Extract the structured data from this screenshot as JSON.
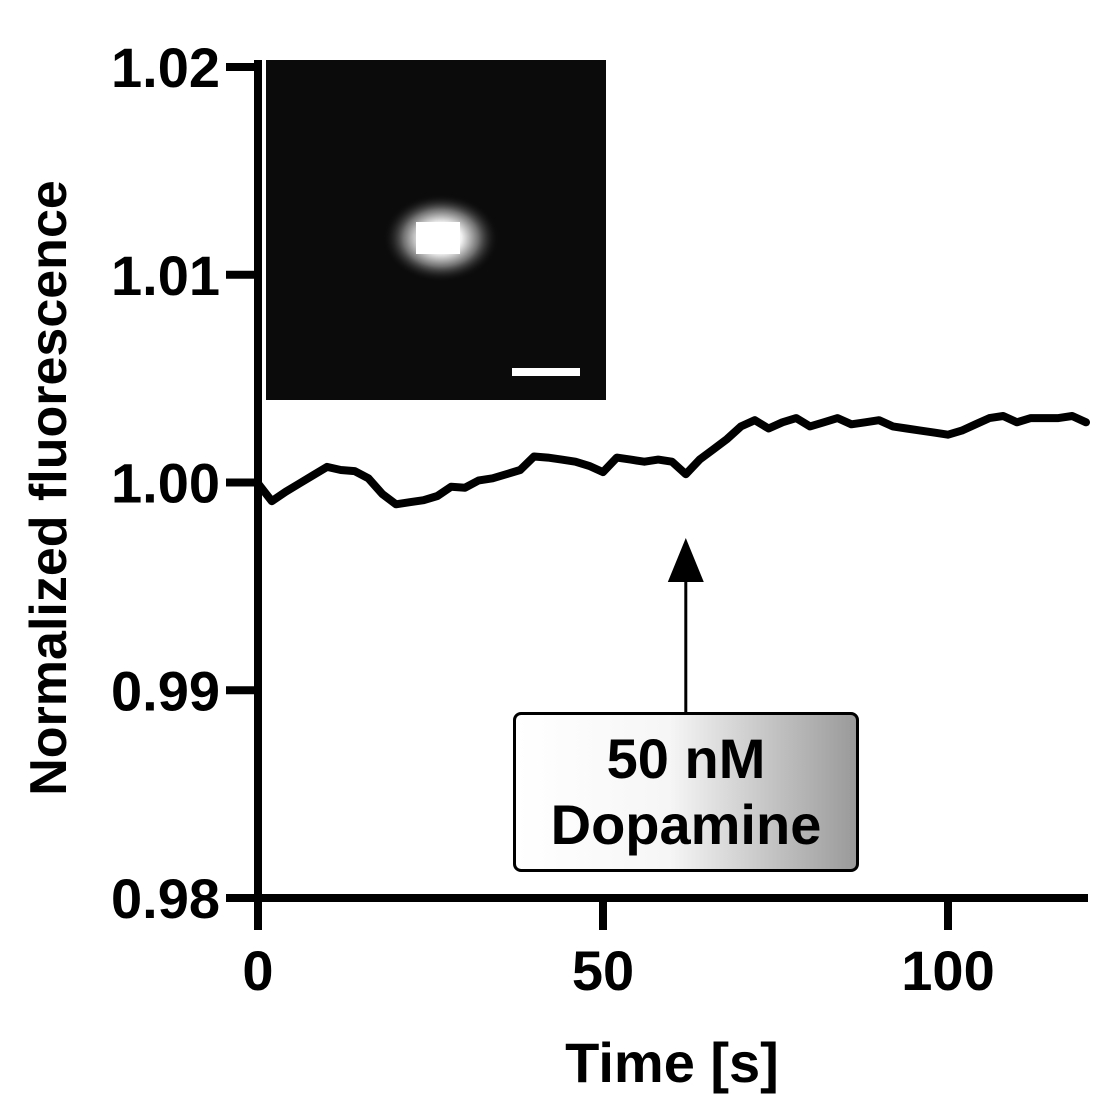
{
  "chart_data": {
    "type": "line",
    "xlabel": "Time [s]",
    "ylabel": "Normalized fluorescence",
    "xlim": [
      0,
      120
    ],
    "ylim": [
      0.98,
      1.02
    ],
    "x_ticks": [
      0,
      50,
      100
    ],
    "x_tick_labels": [
      "0",
      "50",
      "100"
    ],
    "y_ticks": [
      0.98,
      0.99,
      1.0,
      1.01,
      1.02
    ],
    "y_tick_labels": [
      "0.98",
      "0.99",
      "1.00",
      "1.01",
      "1.02"
    ],
    "grid": false,
    "legend": "none",
    "line_color": "#000000",
    "series": [
      {
        "x": [
          0,
          2,
          4,
          6,
          8,
          10,
          12,
          14,
          16,
          18,
          20,
          22,
          24,
          26,
          28,
          30,
          32,
          34,
          36,
          38,
          40,
          42,
          44,
          46,
          48,
          50,
          52,
          54,
          56,
          58,
          60,
          62,
          64,
          66,
          68,
          70,
          72,
          74,
          76,
          78,
          80,
          82,
          84,
          86,
          88,
          90,
          92,
          94,
          96,
          98,
          100,
          102,
          104,
          106,
          108,
          110,
          112,
          114,
          116,
          118,
          120
        ],
        "values": [
          0.99995,
          0.9991,
          0.99955,
          0.99995,
          1.00035,
          1.00075,
          1.0006,
          1.00055,
          1.0002,
          0.99945,
          0.99895,
          0.99905,
          0.99915,
          0.99935,
          0.9998,
          0.99975,
          1.0001,
          1.0002,
          1.0004,
          1.0006,
          1.00125,
          1.0012,
          1.0011,
          1.001,
          1.0008,
          1.0005,
          1.0012,
          1.0011,
          1.001,
          1.0011,
          1.001,
          1.0004,
          1.0011,
          1.0016,
          1.0021,
          1.0027,
          1.003,
          1.0026,
          1.0029,
          1.0031,
          1.0027,
          1.0029,
          1.0031,
          1.0028,
          1.0029,
          1.003,
          1.0027,
          1.0026,
          1.0025,
          1.0024,
          1.0023,
          1.0025,
          1.0028,
          1.0031,
          1.0032,
          1.0029,
          1.0031,
          1.0031,
          1.0031,
          1.0032,
          1.0029
        ]
      }
    ],
    "arrow_at_x": 62,
    "annotation": [
      "50 nM",
      "Dopamine"
    ],
    "inset": {
      "type": "fluorescence-image",
      "has_scale_bar": true
    }
  }
}
